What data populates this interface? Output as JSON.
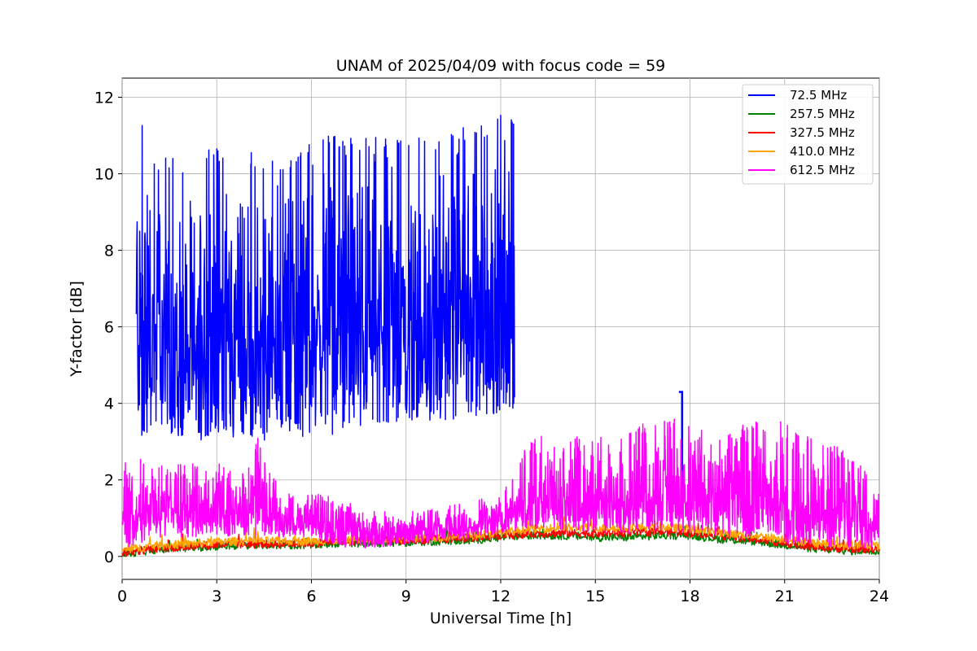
{
  "chart_data": {
    "type": "line",
    "title": "UNAM of 2025/04/09 with focus code = 59",
    "xlabel": "Universal Time [h]",
    "ylabel": "Y-factor [dB]",
    "xlim": [
      0,
      24
    ],
    "ylim": [
      -0.6,
      12.5
    ],
    "xticks": [
      0,
      3,
      6,
      9,
      12,
      15,
      18,
      21,
      24
    ],
    "yticks": [
      0,
      2,
      4,
      6,
      8,
      10,
      12
    ],
    "grid": true,
    "legend_position": "top-right",
    "series": [
      {
        "name": " 72.5 MHz",
        "color": "#0000ff",
        "band": [
          {
            "x": 0.45,
            "lo": 3.0,
            "hi": 11.9
          },
          {
            "x": 1.0,
            "lo": 3.3,
            "hi": 10.3
          },
          {
            "x": 1.5,
            "lo": 3.2,
            "hi": 10.5
          },
          {
            "x": 2.0,
            "lo": 3.0,
            "hi": 10.1
          },
          {
            "x": 2.2,
            "lo": 2.7,
            "hi": 9.2
          },
          {
            "x": 2.5,
            "lo": 3.0,
            "hi": 10.6
          },
          {
            "x": 3.0,
            "lo": 3.2,
            "hi": 10.7
          },
          {
            "x": 3.5,
            "lo": 3.1,
            "hi": 10.8
          },
          {
            "x": 4.0,
            "lo": 3.0,
            "hi": 10.6
          },
          {
            "x": 4.5,
            "lo": 3.0,
            "hi": 10.4
          },
          {
            "x": 5.0,
            "lo": 3.3,
            "hi": 10.4
          },
          {
            "x": 5.5,
            "lo": 3.2,
            "hi": 10.6
          },
          {
            "x": 6.0,
            "lo": 3.0,
            "hi": 10.8
          },
          {
            "x": 6.5,
            "lo": 3.2,
            "hi": 11.0
          },
          {
            "x": 7.0,
            "lo": 3.1,
            "hi": 11.0
          },
          {
            "x": 7.5,
            "lo": 3.4,
            "hi": 11.1
          },
          {
            "x": 8.0,
            "lo": 3.3,
            "hi": 11.0
          },
          {
            "x": 8.5,
            "lo": 3.5,
            "hi": 11.0
          },
          {
            "x": 9.0,
            "lo": 3.5,
            "hi": 11.1
          },
          {
            "x": 9.5,
            "lo": 3.4,
            "hi": 10.9
          },
          {
            "x": 10.0,
            "lo": 3.6,
            "hi": 11.0
          },
          {
            "x": 10.5,
            "lo": 3.5,
            "hi": 11.1
          },
          {
            "x": 11.0,
            "lo": 3.7,
            "hi": 11.3
          },
          {
            "x": 11.5,
            "lo": 3.6,
            "hi": 11.3
          },
          {
            "x": 12.0,
            "lo": 3.8,
            "hi": 11.7
          },
          {
            "x": 12.45,
            "lo": 3.8,
            "hi": 11.4
          }
        ],
        "tail": [
          {
            "x": 17.65,
            "y": 4.3
          },
          {
            "x": 17.75,
            "y": 4.3
          }
        ]
      },
      {
        "name": "257.5 MHz",
        "color": "#008000",
        "values": [
          {
            "x": 0.0,
            "y": 0.05
          },
          {
            "x": 1.0,
            "y": 0.18
          },
          {
            "x": 2.0,
            "y": 0.22
          },
          {
            "x": 3.0,
            "y": 0.27
          },
          {
            "x": 4.0,
            "y": 0.3
          },
          {
            "x": 5.0,
            "y": 0.3
          },
          {
            "x": 6.0,
            "y": 0.3
          },
          {
            "x": 7.0,
            "y": 0.35
          },
          {
            "x": 8.0,
            "y": 0.35
          },
          {
            "x": 9.0,
            "y": 0.37
          },
          {
            "x": 10.0,
            "y": 0.4
          },
          {
            "x": 11.0,
            "y": 0.42
          },
          {
            "x": 12.0,
            "y": 0.5
          },
          {
            "x": 13.0,
            "y": 0.55
          },
          {
            "x": 14.0,
            "y": 0.55
          },
          {
            "x": 15.0,
            "y": 0.5
          },
          {
            "x": 16.0,
            "y": 0.5
          },
          {
            "x": 17.0,
            "y": 0.55
          },
          {
            "x": 18.0,
            "y": 0.55
          },
          {
            "x": 19.0,
            "y": 0.45
          },
          {
            "x": 20.0,
            "y": 0.4
          },
          {
            "x": 21.0,
            "y": 0.3
          },
          {
            "x": 22.0,
            "y": 0.2
          },
          {
            "x": 23.0,
            "y": 0.15
          },
          {
            "x": 24.0,
            "y": 0.15
          }
        ]
      },
      {
        "name": "327.5 MHz",
        "color": "#ff0000",
        "values": [
          {
            "x": 0.0,
            "y": 0.1
          },
          {
            "x": 1.0,
            "y": 0.2
          },
          {
            "x": 2.0,
            "y": 0.25
          },
          {
            "x": 3.0,
            "y": 0.3
          },
          {
            "x": 4.0,
            "y": 0.32
          },
          {
            "x": 5.0,
            "y": 0.33
          },
          {
            "x": 6.0,
            "y": 0.35
          },
          {
            "x": 7.0,
            "y": 0.38
          },
          {
            "x": 8.0,
            "y": 0.4
          },
          {
            "x": 9.0,
            "y": 0.42
          },
          {
            "x": 10.0,
            "y": 0.45
          },
          {
            "x": 11.0,
            "y": 0.48
          },
          {
            "x": 12.0,
            "y": 0.55
          },
          {
            "x": 13.0,
            "y": 0.6
          },
          {
            "x": 14.0,
            "y": 0.62
          },
          {
            "x": 15.0,
            "y": 0.6
          },
          {
            "x": 16.0,
            "y": 0.62
          },
          {
            "x": 17.0,
            "y": 0.65
          },
          {
            "x": 18.0,
            "y": 0.62
          },
          {
            "x": 19.0,
            "y": 0.55
          },
          {
            "x": 20.0,
            "y": 0.45
          },
          {
            "x": 21.0,
            "y": 0.35
          },
          {
            "x": 22.0,
            "y": 0.25
          },
          {
            "x": 23.0,
            "y": 0.2
          },
          {
            "x": 24.0,
            "y": 0.2
          }
        ]
      },
      {
        "name": "410.0 MHz",
        "color": "#ffa500",
        "values": [
          {
            "x": 0.0,
            "y": 0.15
          },
          {
            "x": 1.0,
            "y": 0.28
          },
          {
            "x": 2.0,
            "y": 0.32
          },
          {
            "x": 3.0,
            "y": 0.38
          },
          {
            "x": 4.0,
            "y": 0.4
          },
          {
            "x": 5.0,
            "y": 0.4
          },
          {
            "x": 6.0,
            "y": 0.4
          },
          {
            "x": 7.0,
            "y": 0.42
          },
          {
            "x": 8.0,
            "y": 0.45
          },
          {
            "x": 9.0,
            "y": 0.48
          },
          {
            "x": 10.0,
            "y": 0.5
          },
          {
            "x": 11.0,
            "y": 0.55
          },
          {
            "x": 12.0,
            "y": 0.62
          },
          {
            "x": 13.0,
            "y": 0.72
          },
          {
            "x": 14.0,
            "y": 0.75
          },
          {
            "x": 15.0,
            "y": 0.75
          },
          {
            "x": 16.0,
            "y": 0.75
          },
          {
            "x": 17.0,
            "y": 0.78
          },
          {
            "x": 18.0,
            "y": 0.72
          },
          {
            "x": 19.0,
            "y": 0.62
          },
          {
            "x": 20.0,
            "y": 0.55
          },
          {
            "x": 21.0,
            "y": 0.45
          },
          {
            "x": 22.0,
            "y": 0.35
          },
          {
            "x": 23.0,
            "y": 0.28
          },
          {
            "x": 24.0,
            "y": 0.28
          }
        ]
      },
      {
        "name": "612.5 MHz",
        "color": "#ff00ff",
        "band": [
          {
            "x": 0.0,
            "lo": 0.1,
            "hi": 2.5
          },
          {
            "x": 1.0,
            "lo": 0.5,
            "hi": 2.6
          },
          {
            "x": 2.0,
            "lo": 0.5,
            "hi": 2.4
          },
          {
            "x": 3.0,
            "lo": 0.55,
            "hi": 2.6
          },
          {
            "x": 4.0,
            "lo": 0.5,
            "hi": 2.3
          },
          {
            "x": 4.3,
            "lo": 0.55,
            "hi": 3.1
          },
          {
            "x": 5.0,
            "lo": 0.5,
            "hi": 1.7
          },
          {
            "x": 6.0,
            "lo": 0.5,
            "hi": 1.8
          },
          {
            "x": 7.0,
            "lo": 0.2,
            "hi": 1.5
          },
          {
            "x": 8.0,
            "lo": 0.2,
            "hi": 1.2
          },
          {
            "x": 9.0,
            "lo": 0.3,
            "hi": 1.2
          },
          {
            "x": 10.0,
            "lo": 0.4,
            "hi": 1.3
          },
          {
            "x": 11.0,
            "lo": 0.45,
            "hi": 1.4
          },
          {
            "x": 12.0,
            "lo": 0.6,
            "hi": 1.7
          },
          {
            "x": 13.0,
            "lo": 0.7,
            "hi": 3.2
          },
          {
            "x": 14.0,
            "lo": 0.7,
            "hi": 3.0
          },
          {
            "x": 15.0,
            "lo": 0.6,
            "hi": 3.4
          },
          {
            "x": 16.0,
            "lo": 0.6,
            "hi": 3.2
          },
          {
            "x": 17.0,
            "lo": 0.65,
            "hi": 3.8
          },
          {
            "x": 18.0,
            "lo": 0.6,
            "hi": 3.5
          },
          {
            "x": 19.0,
            "lo": 0.55,
            "hi": 3.2
          },
          {
            "x": 20.0,
            "lo": 0.5,
            "hi": 3.7
          },
          {
            "x": 21.0,
            "lo": 0.35,
            "hi": 3.5
          },
          {
            "x": 22.0,
            "lo": 0.25,
            "hi": 3.2
          },
          {
            "x": 23.0,
            "lo": 0.2,
            "hi": 2.8
          },
          {
            "x": 24.0,
            "lo": 0.2,
            "hi": 1.8
          }
        ]
      }
    ]
  }
}
